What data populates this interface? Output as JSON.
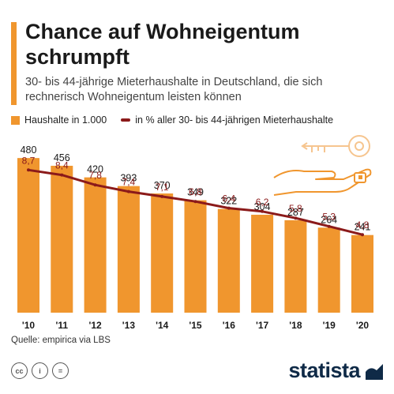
{
  "title": "Chance auf Wohneigentum schrumpft",
  "subtitle": "30- bis 44-jährige Mieterhaushalte in Deutschland, die sich rechnerisch Wohneigentum leisten können",
  "legend": {
    "bars": "Haushalte in 1.000",
    "line": "in % aller 30- bis 44-jährigen Mieterhaushalte"
  },
  "colors": {
    "bar": "#F0962E",
    "line": "#8B1A1A",
    "accent": "#F0962E",
    "brand": "#0F2A47"
  },
  "chart_data": {
    "type": "bar",
    "categories": [
      "'10",
      "'11",
      "'12",
      "'13",
      "'14",
      "'15",
      "'16",
      "'17",
      "'18",
      "'19",
      "'20"
    ],
    "series": [
      {
        "name": "Haushalte in 1.000",
        "type": "bar",
        "values": [
          480,
          456,
          420,
          393,
          370,
          349,
          322,
          304,
          287,
          264,
          241
        ],
        "labels": [
          "480",
          "456",
          "420",
          "393",
          "370",
          "349",
          "322",
          "304",
          "287",
          "264",
          "241"
        ]
      },
      {
        "name": "in % aller 30- bis 44-jährigen Mieterhaushalte",
        "type": "line",
        "values": [
          8.7,
          8.4,
          7.8,
          7.4,
          7.1,
          6.8,
          6.4,
          6.2,
          5.8,
          5.3,
          4.8
        ],
        "labels": [
          "8,7",
          "8,4",
          "7,8",
          "7,4",
          "7,1",
          "6,8",
          "6,4",
          "6,2",
          "5,8",
          "5,3",
          "4,8"
        ]
      }
    ],
    "ylim": [
      0,
      500
    ],
    "grid": false,
    "legend_position": "top-left"
  },
  "source": "Quelle: empirica via LBS",
  "license_icons": [
    "cc",
    "i",
    "="
  ],
  "brand": "statista"
}
